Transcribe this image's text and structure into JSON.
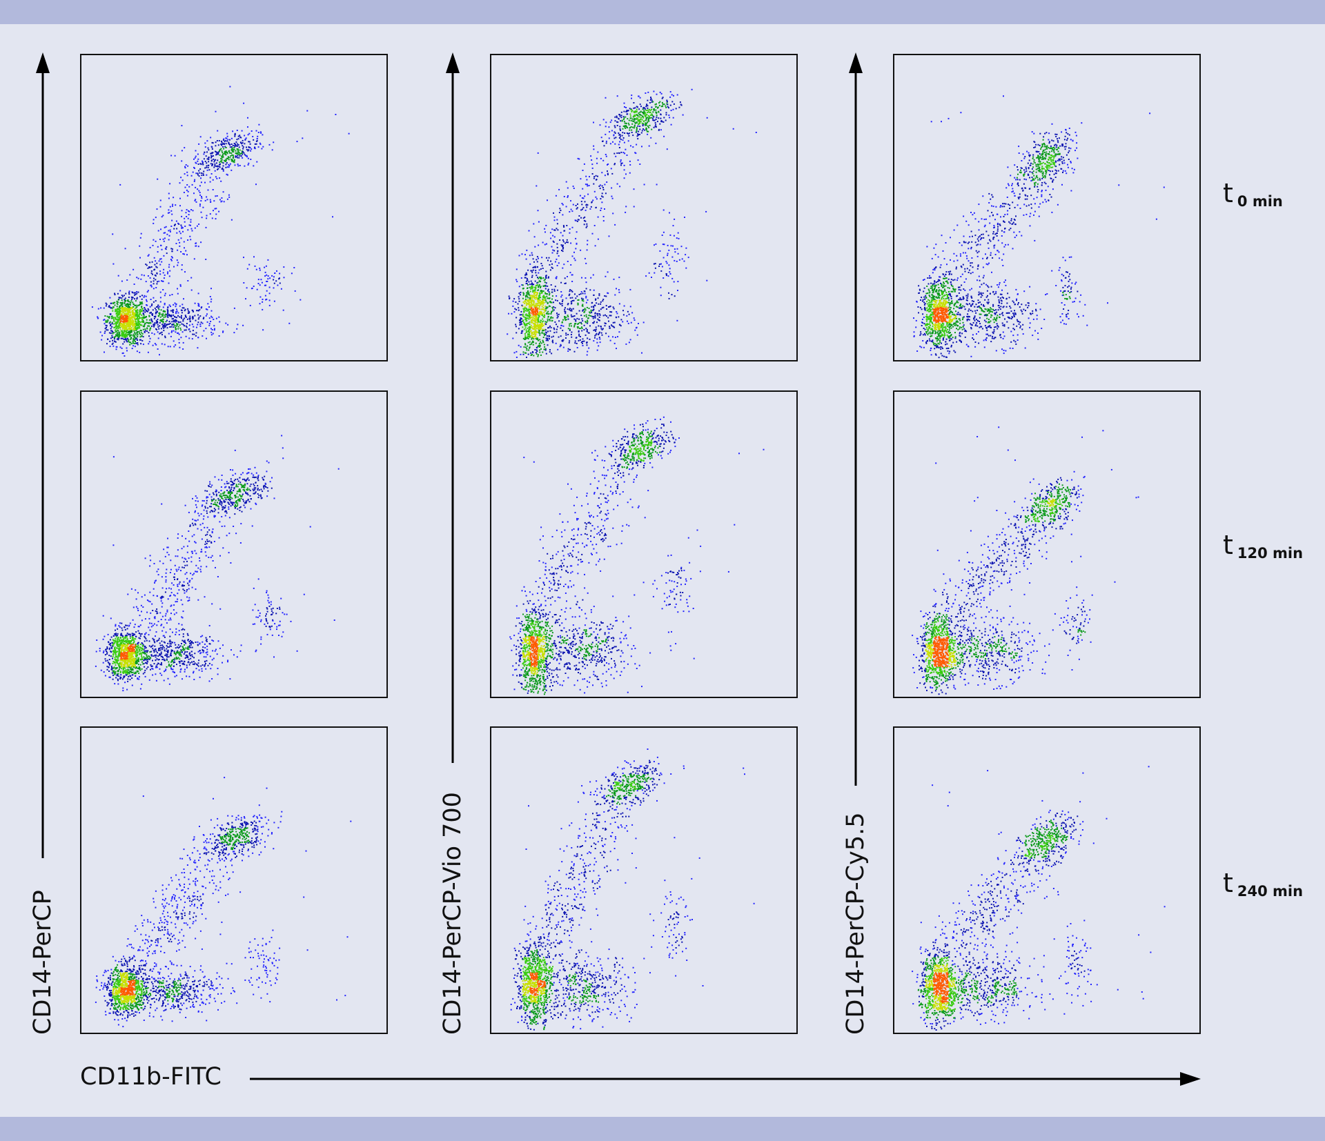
{
  "chart_data": {
    "type": "scatter",
    "subtype": "flow-cytometry density dot plots (3x3 grid)",
    "x_axis_label": "CD11b-FITC",
    "y_axis_labels": [
      "CD14-PerCP",
      "CD14-PerCP-Vio 700",
      "CD14-PerCP-Cy5.5"
    ],
    "row_labels": [
      {
        "main": "t",
        "sub": "0 min"
      },
      {
        "main": "t",
        "sub": "120 min"
      },
      {
        "main": "t",
        "sub": "240 min"
      }
    ],
    "axis_range": [
      0,
      1
    ],
    "density_colors": [
      "#2424ff",
      "#0a12b0",
      "#0a9a1a",
      "#38cc10",
      "#c8e000",
      "#ff5a00"
    ],
    "panels": [
      {
        "col": 0,
        "row": 0,
        "populations": {
          "lymphocytes": [
            0.145,
            0.13,
            0.032,
            0.04
          ],
          "granulocyte_tail": [
            0.29,
            0.13,
            0.08,
            0.035
          ],
          "monocytes": [
            0.47,
            0.68,
            0.055,
            0.035
          ],
          "bridge": [
            0.2,
            0.22,
            0.42,
            0.6
          ],
          "minor": [
            0.6,
            0.25,
            0.035,
            0.05
          ]
        }
      },
      {
        "col": 0,
        "row": 1,
        "populations": {
          "lymphocytes": [
            0.145,
            0.14,
            0.032,
            0.04
          ],
          "granulocyte_tail": [
            0.3,
            0.14,
            0.08,
            0.035
          ],
          "monocytes": [
            0.5,
            0.67,
            0.055,
            0.035
          ],
          "bridge": [
            0.22,
            0.22,
            0.44,
            0.6
          ],
          "minor": [
            0.62,
            0.26,
            0.03,
            0.05
          ]
        }
      },
      {
        "col": 0,
        "row": 2,
        "populations": {
          "lymphocytes": [
            0.145,
            0.14,
            0.032,
            0.04
          ],
          "granulocyte_tail": [
            0.29,
            0.14,
            0.08,
            0.035
          ],
          "monocytes": [
            0.5,
            0.64,
            0.055,
            0.035
          ],
          "bridge": [
            0.2,
            0.24,
            0.44,
            0.58
          ],
          "minor": [
            0.6,
            0.22,
            0.03,
            0.05
          ]
        }
      },
      {
        "col": 1,
        "row": 0,
        "populations": {
          "lymphocytes": [
            0.14,
            0.15,
            0.028,
            0.07
          ],
          "granulocyte_tail": [
            0.3,
            0.14,
            0.08,
            0.055
          ],
          "monocytes": [
            0.49,
            0.8,
            0.05,
            0.035
          ],
          "bridge": [
            0.18,
            0.3,
            0.44,
            0.74
          ],
          "minor": [
            0.57,
            0.34,
            0.03,
            0.06
          ]
        }
      },
      {
        "col": 1,
        "row": 1,
        "populations": {
          "lymphocytes": [
            0.14,
            0.15,
            0.028,
            0.07
          ],
          "granulocyte_tail": [
            0.3,
            0.15,
            0.08,
            0.055
          ],
          "monocytes": [
            0.49,
            0.82,
            0.05,
            0.035
          ],
          "bridge": [
            0.18,
            0.3,
            0.44,
            0.76
          ],
          "minor": [
            0.6,
            0.36,
            0.03,
            0.06
          ]
        }
      },
      {
        "col": 1,
        "row": 2,
        "populations": {
          "lymphocytes": [
            0.14,
            0.16,
            0.028,
            0.07
          ],
          "granulocyte_tail": [
            0.3,
            0.15,
            0.08,
            0.055
          ],
          "monocytes": [
            0.45,
            0.81,
            0.05,
            0.035
          ],
          "bridge": [
            0.18,
            0.3,
            0.41,
            0.75
          ],
          "minor": [
            0.6,
            0.36,
            0.03,
            0.06
          ]
        }
      },
      {
        "col": 2,
        "row": 0,
        "populations": {
          "lymphocytes": [
            0.145,
            0.15,
            0.03,
            0.06
          ],
          "granulocyte_tail": [
            0.3,
            0.15,
            0.08,
            0.05
          ],
          "monocytes": [
            0.5,
            0.66,
            0.045,
            0.045
          ],
          "bridge": [
            0.2,
            0.28,
            0.46,
            0.6
          ],
          "minor": [
            0.57,
            0.22,
            0.025,
            0.05
          ]
        }
      },
      {
        "col": 2,
        "row": 1,
        "populations": {
          "lymphocytes": [
            0.145,
            0.15,
            0.03,
            0.06
          ],
          "granulocyte_tail": [
            0.3,
            0.15,
            0.08,
            0.05
          ],
          "monocytes": [
            0.51,
            0.63,
            0.045,
            0.04
          ],
          "bridge": [
            0.2,
            0.28,
            0.47,
            0.58
          ],
          "minor": [
            0.6,
            0.23,
            0.025,
            0.05
          ]
        }
      },
      {
        "col": 2,
        "row": 2,
        "populations": {
          "lymphocytes": [
            0.145,
            0.15,
            0.03,
            0.06
          ],
          "granulocyte_tail": [
            0.3,
            0.15,
            0.08,
            0.05
          ],
          "monocytes": [
            0.5,
            0.63,
            0.045,
            0.04
          ],
          "bridge": [
            0.2,
            0.28,
            0.46,
            0.57
          ],
          "minor": [
            0.59,
            0.22,
            0.025,
            0.05
          ]
        }
      }
    ]
  }
}
